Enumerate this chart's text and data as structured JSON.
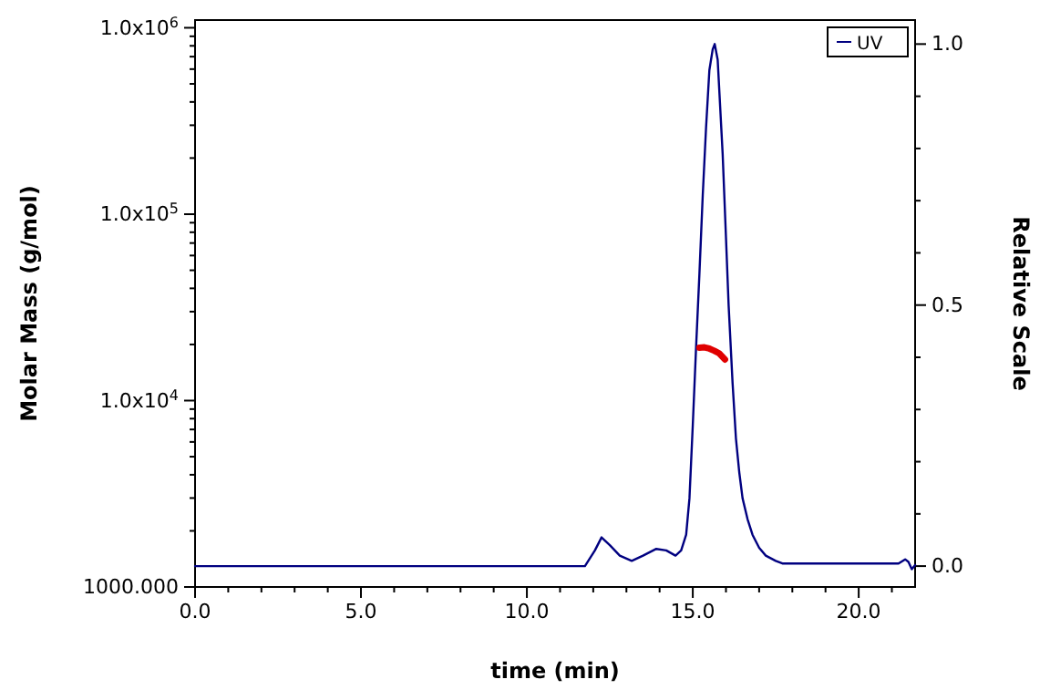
{
  "chart_data": {
    "type": "line",
    "xlabel": "time (min)",
    "ylabel": "Molar Mass (g/mol)",
    "y2label": "Relative Scale",
    "log": "y",
    "legend": "top right",
    "xlim": [
      0,
      21.7
    ],
    "ylim": [
      1000,
      1100000
    ],
    "y2lim": [
      -0.04,
      1.046
    ],
    "xticks": [
      {
        "value": 0,
        "label": "0.0"
      },
      {
        "value": 1,
        "label": null
      },
      {
        "value": 2,
        "label": null
      },
      {
        "value": 3,
        "label": null
      },
      {
        "value": 4,
        "label": null
      },
      {
        "value": 5,
        "label": "5.0"
      },
      {
        "value": 6,
        "label": null
      },
      {
        "value": 7,
        "label": null
      },
      {
        "value": 8,
        "label": null
      },
      {
        "value": 9,
        "label": null
      },
      {
        "value": 10,
        "label": "10.0"
      },
      {
        "value": 11,
        "label": null
      },
      {
        "value": 12,
        "label": null
      },
      {
        "value": 13,
        "label": null
      },
      {
        "value": 14,
        "label": null
      },
      {
        "value": 15,
        "label": "15.0"
      },
      {
        "value": 16,
        "label": null
      },
      {
        "value": 17,
        "label": null
      },
      {
        "value": 18,
        "label": null
      },
      {
        "value": 19,
        "label": null
      },
      {
        "value": 20,
        "label": "20.0"
      },
      {
        "value": 21,
        "label": null
      }
    ],
    "yticks": [
      {
        "value": 1000,
        "label": "1000.000"
      },
      {
        "value": 2000,
        "label": null
      },
      {
        "value": 3000,
        "label": null
      },
      {
        "value": 4000,
        "label": null
      },
      {
        "value": 5000,
        "label": null
      },
      {
        "value": 6000,
        "label": null
      },
      {
        "value": 7000,
        "label": null
      },
      {
        "value": 8000,
        "label": null
      },
      {
        "value": 9000,
        "label": null
      },
      {
        "value": 10000,
        "label": "1.0x10$^{4}$"
      },
      {
        "value": 20000,
        "label": null
      },
      {
        "value": 30000,
        "label": null
      },
      {
        "value": 40000,
        "label": null
      },
      {
        "value": 50000,
        "label": null
      },
      {
        "value": 60000,
        "label": null
      },
      {
        "value": 70000,
        "label": null
      },
      {
        "value": 80000,
        "label": null
      },
      {
        "value": 90000,
        "label": null
      },
      {
        "value": 100000,
        "label": "1.0x10$^{5}$"
      },
      {
        "value": 200000,
        "label": null
      },
      {
        "value": 300000,
        "label": null
      },
      {
        "value": 400000,
        "label": null
      },
      {
        "value": 500000,
        "label": null
      },
      {
        "value": 600000,
        "label": null
      },
      {
        "value": 700000,
        "label": null
      },
      {
        "value": 800000,
        "label": null
      },
      {
        "value": 900000,
        "label": null
      },
      {
        "value": 1000000,
        "label": "1.0x10$^{6}$"
      }
    ],
    "y2ticks": [
      {
        "value": 0,
        "label": "0.0"
      },
      {
        "value": 0.1,
        "label": null
      },
      {
        "value": 0.2,
        "label": null
      },
      {
        "value": 0.3,
        "label": null
      },
      {
        "value": 0.4,
        "label": null
      },
      {
        "value": 0.5,
        "label": "0.5"
      },
      {
        "value": 0.6,
        "label": null
      },
      {
        "value": 0.7,
        "label": null
      },
      {
        "value": 0.8,
        "label": null
      },
      {
        "value": 0.9,
        "label": null
      },
      {
        "value": 1,
        "label": "1.0"
      }
    ],
    "series": [
      {
        "name": "UV",
        "color": "#000080",
        "axis": "y2",
        "x": [
          0,
          5,
          10,
          11.75,
          12.05,
          12.25,
          12.5,
          12.8,
          13.16,
          13.5,
          13.9,
          14.2,
          14.48,
          14.65,
          14.8,
          14.9,
          15,
          15.1,
          15.2,
          15.3,
          15.4,
          15.5,
          15.6,
          15.66,
          15.75,
          15.9,
          16,
          16.08,
          16.2,
          16.3,
          16.4,
          16.5,
          16.65,
          16.8,
          17,
          17.2,
          17.5,
          17.7,
          18,
          19,
          20,
          21,
          21.2,
          21.4,
          21.5,
          21.6,
          21.7
        ],
        "values": [
          0,
          0,
          0,
          0,
          0.03,
          0.055,
          0.04,
          0.02,
          0.01,
          0.02,
          0.033,
          0.03,
          0.02,
          0.03,
          0.06,
          0.13,
          0.27,
          0.42,
          0.56,
          0.71,
          0.84,
          0.95,
          0.99,
          1.0,
          0.97,
          0.79,
          0.63,
          0.5,
          0.35,
          0.245,
          0.18,
          0.13,
          0.09,
          0.06,
          0.035,
          0.02,
          0.01,
          0.005,
          0.005,
          0.005,
          0.005,
          0.005,
          0.005,
          0.013,
          0.008,
          -0.006,
          0.002
        ]
      },
      {
        "color": "#e00000",
        "x": [
          15.2,
          15.35,
          15.5,
          15.65,
          15.8,
          15.97
        ],
        "values": [
          19200,
          19300,
          19000,
          18500,
          17900,
          16600
        ]
      }
    ]
  }
}
